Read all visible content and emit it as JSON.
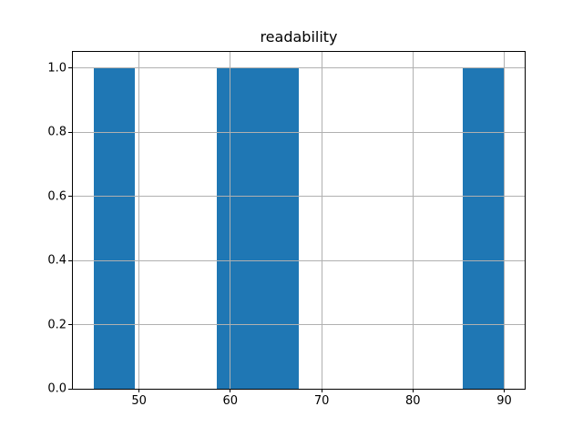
{
  "figure": {
    "background": "#ffffff"
  },
  "chart_data": {
    "type": "bar",
    "subtype": "histogram",
    "title": "readability",
    "xlabel": "",
    "ylabel": "",
    "bin_edges": [
      45.0,
      49.5,
      54.0,
      58.5,
      63.0,
      67.5,
      72.0,
      76.5,
      81.0,
      85.5,
      90.0
    ],
    "counts": [
      1,
      0,
      0,
      1,
      1,
      0,
      0,
      0,
      0,
      1
    ],
    "xlim": [
      42.75,
      92.25
    ],
    "ylim": [
      0,
      1.05
    ],
    "xticks": [
      {
        "value": 50,
        "label": "50"
      },
      {
        "value": 60,
        "label": "60"
      },
      {
        "value": 70,
        "label": "70"
      },
      {
        "value": 80,
        "label": "80"
      },
      {
        "value": 90,
        "label": "90"
      }
    ],
    "yticks": [
      {
        "value": 0.0,
        "label": "0.0"
      },
      {
        "value": 0.2,
        "label": "0.2"
      },
      {
        "value": 0.4,
        "label": "0.4"
      },
      {
        "value": 0.6,
        "label": "0.6"
      },
      {
        "value": 0.8,
        "label": "0.8"
      },
      {
        "value": 1.0,
        "label": "1.0"
      }
    ],
    "grid": true,
    "grid_above_bars": true,
    "grid_color": "#b0b0b0",
    "bar_color": "#1f77b4",
    "axis_color": "#000000",
    "legend": []
  }
}
